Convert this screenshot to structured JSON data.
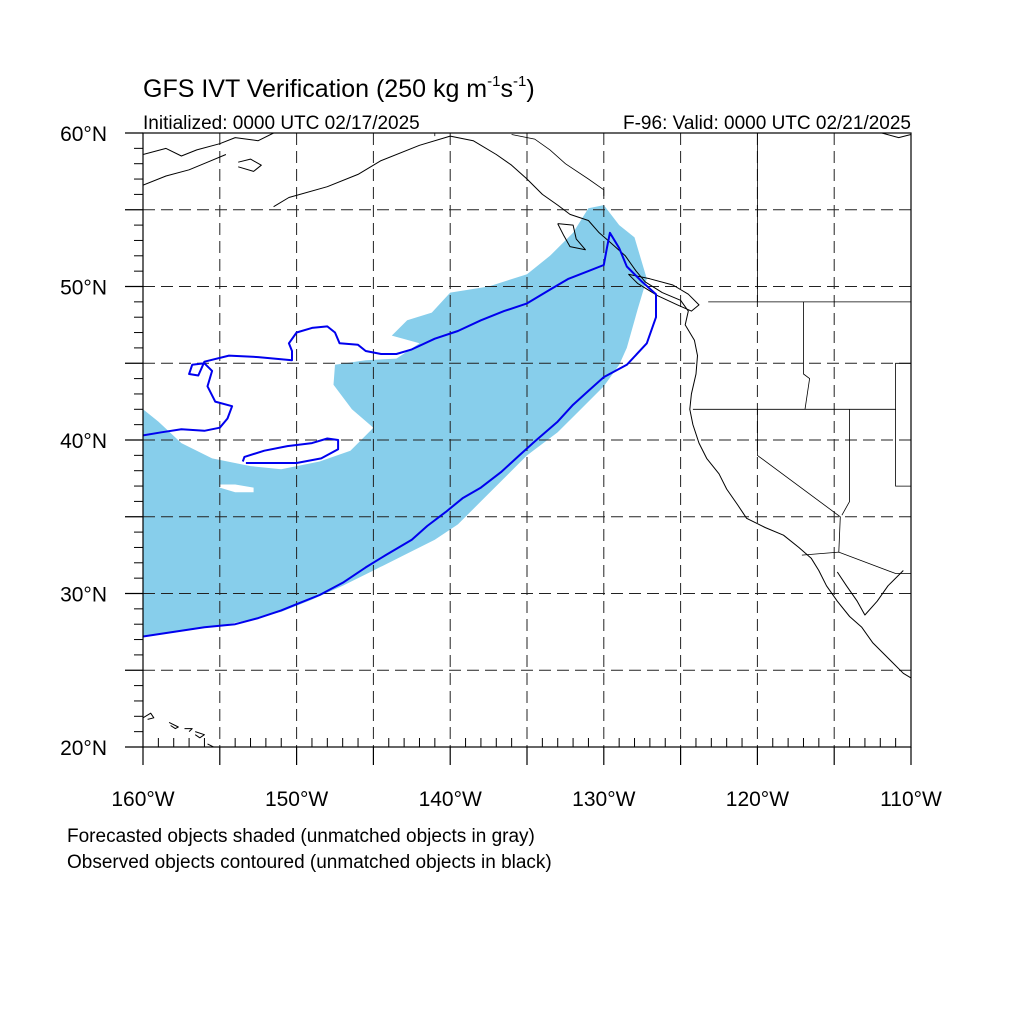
{
  "title": {
    "main": "GFS IVT Verification (250 kg m",
    "exp1": "-1",
    "mid": "s",
    "exp2": "-1",
    "end": ")"
  },
  "subtitle_left": "Initialized: 0000 UTC 02/17/2025",
  "subtitle_right": "F-96: Valid: 0000 UTC 02/21/2025",
  "map": {
    "lon_range": [
      -160,
      -110
    ],
    "lat_range": [
      20,
      60
    ],
    "lon_labels": [
      {
        "lon": -160,
        "text": "160°W"
      },
      {
        "lon": -150,
        "text": "150°W"
      },
      {
        "lon": -140,
        "text": "140°W"
      },
      {
        "lon": -130,
        "text": "130°W"
      },
      {
        "lon": -120,
        "text": "120°W"
      },
      {
        "lon": -110,
        "text": "110°W"
      }
    ],
    "lat_labels": [
      {
        "lat": 60,
        "text": "60°N"
      },
      {
        "lat": 50,
        "text": "50°N"
      },
      {
        "lat": 40,
        "text": "40°N"
      },
      {
        "lat": 30,
        "text": "30°N"
      },
      {
        "lat": 20,
        "text": "20°N"
      }
    ],
    "grid_lons": [
      -155,
      -150,
      -145,
      -140,
      -135,
      -130,
      -125,
      -120,
      -115
    ],
    "grid_lats": [
      25,
      30,
      35,
      40,
      45,
      50,
      55
    ],
    "forecast_color": "#87ceeb",
    "observed_color": "#0000ee",
    "coast_color": "#000000",
    "forecast_object": [
      [
        -160,
        42
      ],
      [
        -159,
        41.2
      ],
      [
        -157.5,
        39.8
      ],
      [
        -155.5,
        38.8
      ],
      [
        -153,
        38.3
      ],
      [
        -151,
        38.1
      ],
      [
        -148.5,
        38.6
      ],
      [
        -146.5,
        39.3
      ],
      [
        -145,
        40.8
      ],
      [
        -146.4,
        42
      ],
      [
        -147.6,
        43.6
      ],
      [
        -147.5,
        44.9
      ],
      [
        -145.5,
        45.2
      ],
      [
        -143.5,
        45.3
      ],
      [
        -142,
        46.3
      ],
      [
        -143.8,
        46.8
      ],
      [
        -142.8,
        47.8
      ],
      [
        -141.2,
        48.3
      ],
      [
        -140,
        49.6
      ],
      [
        -137.5,
        50
      ],
      [
        -135,
        50.8
      ],
      [
        -133.5,
        52
      ],
      [
        -132,
        53.5
      ],
      [
        -131,
        55.1
      ],
      [
        -130,
        55.3
      ],
      [
        -129,
        54
      ],
      [
        -128,
        53.2
      ],
      [
        -127.2,
        50.5
      ],
      [
        -127.8,
        48.5
      ],
      [
        -128.5,
        46
      ],
      [
        -129,
        44.9
      ],
      [
        -130,
        43.5
      ],
      [
        -131.5,
        42
      ],
      [
        -133,
        40.5
      ],
      [
        -135,
        39
      ],
      [
        -136.5,
        37.5
      ],
      [
        -138,
        36
      ],
      [
        -139.5,
        34.5
      ],
      [
        -141,
        33.5
      ],
      [
        -143,
        32.5
      ],
      [
        -145,
        31.5
      ],
      [
        -147,
        30.5
      ],
      [
        -149,
        29.6
      ],
      [
        -151,
        28.8
      ],
      [
        -153,
        28.3
      ],
      [
        -155,
        27.9
      ],
      [
        -157,
        27.6
      ],
      [
        -158.5,
        27.4
      ],
      [
        -160,
        27.2
      ]
    ],
    "forecast_hole": [
      [
        -155,
        36.9
      ],
      [
        -154,
        36.6
      ],
      [
        -152.8,
        36.6
      ],
      [
        -152.8,
        36.9
      ],
      [
        -154,
        37.1
      ],
      [
        -155,
        37.1
      ]
    ],
    "observed_objects": [
      [
        [
          -160,
          40.3
        ],
        [
          -158.8,
          40.5
        ],
        [
          -157.5,
          40.7
        ],
        [
          -156,
          40.6
        ],
        [
          -155,
          40.8
        ],
        [
          -154.5,
          41.4
        ],
        [
          -154.2,
          42.2
        ],
        [
          -155.3,
          42.5
        ],
        [
          -155.8,
          43.5
        ],
        [
          -155.5,
          44.5
        ],
        [
          -156,
          45
        ],
        [
          -156.8,
          44.9
        ],
        [
          -157,
          44.3
        ],
        [
          -156.4,
          44.2
        ],
        [
          -156,
          45.1
        ],
        [
          -154.4,
          45.5
        ],
        [
          -152.5,
          45.4
        ],
        [
          -150.3,
          45.2
        ],
        [
          -150.3,
          45.8
        ],
        [
          -150.5,
          46.3
        ],
        [
          -150,
          47
        ],
        [
          -149,
          47.3
        ],
        [
          -148,
          47.4
        ],
        [
          -147.5,
          47
        ],
        [
          -147.2,
          46.3
        ],
        [
          -146,
          46.2
        ],
        [
          -145.5,
          45.8
        ],
        [
          -144.5,
          45.6
        ],
        [
          -143.5,
          45.6
        ],
        [
          -142.5,
          45.9
        ],
        [
          -141,
          46.6
        ],
        [
          -139.5,
          47.1
        ],
        [
          -138,
          47.8
        ],
        [
          -136.5,
          48.4
        ],
        [
          -135,
          48.9
        ],
        [
          -133.5,
          49.8
        ],
        [
          -132.3,
          50.5
        ],
        [
          -131,
          51
        ],
        [
          -130,
          51.4
        ],
        [
          -129.8,
          52.5
        ],
        [
          -129.6,
          53.5
        ],
        [
          -129,
          52.5
        ],
        [
          -128.5,
          51.3
        ],
        [
          -127.5,
          50.3
        ],
        [
          -126.6,
          49.5
        ],
        [
          -126.6,
          48
        ],
        [
          -127.2,
          46.3
        ],
        [
          -128.5,
          44.9
        ],
        [
          -130,
          44.1
        ],
        [
          -131,
          43.2
        ],
        [
          -132,
          42.3
        ],
        [
          -133,
          41.2
        ],
        [
          -134.5,
          39.9
        ],
        [
          -135.5,
          39
        ],
        [
          -136.7,
          37.9
        ],
        [
          -138,
          36.9
        ],
        [
          -139.2,
          36.2
        ],
        [
          -140.3,
          35.3
        ],
        [
          -141.5,
          34.4
        ],
        [
          -142.5,
          33.5
        ],
        [
          -144.2,
          32.5
        ],
        [
          -145.5,
          31.7
        ],
        [
          -147,
          30.7
        ],
        [
          -148.5,
          29.9
        ],
        [
          -150,
          29.3
        ],
        [
          -151,
          28.9
        ],
        [
          -152.5,
          28.4
        ],
        [
          -154,
          28
        ],
        [
          -156,
          27.8
        ],
        [
          -158,
          27.5
        ],
        [
          -160,
          27.2
        ]
      ],
      [
        [
          -153.3,
          38.5
        ],
        [
          -152,
          38.5
        ],
        [
          -150,
          38.5
        ],
        [
          -148.4,
          38.8
        ],
        [
          -147.3,
          39.4
        ],
        [
          -147.3,
          40
        ],
        [
          -148,
          40.1
        ],
        [
          -149,
          39.8
        ],
        [
          -150.6,
          39.6
        ],
        [
          -152.1,
          39.3
        ],
        [
          -153.4,
          38.9
        ],
        [
          -153.5,
          38.6
        ]
      ]
    ],
    "coastlines": [
      [
        [
          -151.5,
          55.2
        ],
        [
          -150.5,
          55.8
        ],
        [
          -148,
          56.5
        ],
        [
          -146,
          57.3
        ],
        [
          -144.5,
          58.2
        ],
        [
          -142,
          59.2
        ],
        [
          -140,
          59.8
        ],
        [
          -138.5,
          59.5
        ],
        [
          -137,
          58.6
        ],
        [
          -136,
          57.9
        ],
        [
          -135,
          57
        ],
        [
          -134,
          56
        ],
        [
          -133,
          55.3
        ],
        [
          -132.2,
          54.7
        ],
        [
          -131,
          54.3
        ],
        [
          -130.3,
          53.5
        ],
        [
          -129.5,
          52.8
        ],
        [
          -128.6,
          52
        ],
        [
          -127.9,
          51
        ],
        [
          -127.3,
          50.3
        ],
        [
          -126.2,
          49.6
        ],
        [
          -125,
          49.1
        ],
        [
          -124.5,
          48.4
        ],
        [
          -124.7,
          47.5
        ],
        [
          -124.1,
          46.5
        ],
        [
          -123.9,
          45.5
        ],
        [
          -124,
          44.3
        ],
        [
          -124.3,
          43
        ],
        [
          -124.4,
          42
        ],
        [
          -124.2,
          41
        ],
        [
          -123.8,
          39.8
        ],
        [
          -123.3,
          38.8
        ],
        [
          -122.5,
          37.8
        ],
        [
          -122,
          36.8
        ],
        [
          -121.3,
          35.8
        ],
        [
          -120.7,
          34.9
        ],
        [
          -119.5,
          34.3
        ],
        [
          -118.3,
          33.8
        ],
        [
          -117.3,
          33
        ],
        [
          -116.5,
          32.3
        ],
        [
          -116,
          31.5
        ],
        [
          -115.5,
          30.5
        ],
        [
          -114.8,
          29.5
        ],
        [
          -114,
          28.5
        ],
        [
          -113.2,
          27.8
        ],
        [
          -112.5,
          26.8
        ],
        [
          -111.5,
          25.8
        ],
        [
          -110.5,
          24.8
        ],
        [
          -110,
          24.5
        ]
      ],
      [
        [
          -110.5,
          31.5
        ],
        [
          -111.5,
          30.5
        ],
        [
          -112.2,
          29.5
        ],
        [
          -113,
          28.6
        ],
        [
          -113.5,
          29.5
        ],
        [
          -114.2,
          30.5
        ],
        [
          -114.8,
          31.4
        ]
      ],
      [
        [
          -160,
          58.6
        ],
        [
          -158.5,
          59
        ],
        [
          -157.5,
          58.5
        ],
        [
          -156.5,
          58.9
        ],
        [
          -155,
          59.3
        ],
        [
          -154,
          59.7
        ],
        [
          -152.5,
          59.5
        ],
        [
          -151.5,
          60
        ]
      ],
      [
        [
          -160,
          56.6
        ],
        [
          -158.5,
          57.2
        ],
        [
          -157,
          57.6
        ],
        [
          -155.8,
          58.1
        ],
        [
          -154.6,
          58.6
        ]
      ],
      [
        [
          -153.8,
          57.8
        ],
        [
          -152.8,
          57.5
        ],
        [
          -152.3,
          57.9
        ],
        [
          -153,
          58.3
        ],
        [
          -153.8,
          58.1
        ]
      ],
      [
        [
          -133,
          54.1
        ],
        [
          -132,
          54
        ],
        [
          -131.8,
          53.1
        ],
        [
          -131.2,
          52.4
        ],
        [
          -132.2,
          52.6
        ],
        [
          -132.6,
          53.3
        ],
        [
          -133,
          54.1
        ]
      ],
      [
        [
          -128.4,
          50.8
        ],
        [
          -127,
          50.5
        ],
        [
          -125.5,
          50.1
        ],
        [
          -124.5,
          49.5
        ],
        [
          -123.8,
          48.8
        ],
        [
          -124.3,
          48.4
        ],
        [
          -125.2,
          48.8
        ],
        [
          -126.5,
          49.4
        ],
        [
          -127.8,
          50.2
        ],
        [
          -128.4,
          50.8
        ]
      ],
      [
        [
          -160,
          21.9
        ],
        [
          -159.5,
          22.2
        ],
        [
          -159.3,
          21.9
        ],
        [
          -159.7,
          21.8
        ]
      ],
      [
        [
          -158.3,
          21.6
        ],
        [
          -157.7,
          21.3
        ],
        [
          -157.9,
          21.2
        ],
        [
          -158.2,
          21.4
        ]
      ],
      [
        [
          -157.3,
          21.2
        ],
        [
          -156.8,
          21.2
        ],
        [
          -157.0,
          21.0
        ]
      ],
      [
        [
          -156.6,
          21
        ],
        [
          -156,
          20.8
        ],
        [
          -156.3,
          20.6
        ],
        [
          -156.6,
          20.8
        ]
      ],
      [
        [
          -155.8,
          20.2
        ],
        [
          -155,
          19.8
        ],
        [
          -155.2,
          19.9
        ]
      ],
      [
        [
          -111.9,
          60
        ],
        [
          -110.8,
          59.7
        ],
        [
          -110,
          59.9
        ]
      ]
    ],
    "borders": [
      [
        [
          -141,
          60
        ],
        [
          -141,
          59.8
        ]
      ],
      [
        [
          -130,
          55.9
        ],
        [
          -130,
          56.3
        ],
        [
          -131,
          57
        ],
        [
          -132.5,
          58
        ],
        [
          -133.5,
          58.9
        ],
        [
          -134.5,
          59.6
        ],
        [
          -136,
          59.9
        ]
      ],
      [
        [
          -123.2,
          49
        ],
        [
          -110,
          49
        ]
      ],
      [
        [
          -120,
          60
        ],
        [
          -120,
          49
        ]
      ],
      [
        [
          -117,
          49
        ],
        [
          -117,
          44.3
        ],
        [
          -116.6,
          44
        ],
        [
          -116.9,
          42
        ]
      ],
      [
        [
          -124.2,
          42
        ],
        [
          -111,
          42
        ],
        [
          -111,
          45
        ],
        [
          -110,
          45
        ]
      ],
      [
        [
          -120,
          42
        ],
        [
          -120,
          39
        ],
        [
          -114.6,
          35
        ],
        [
          -114.7,
          32.7
        ]
      ],
      [
        [
          -117.1,
          32.5
        ],
        [
          -114.7,
          32.7
        ],
        [
          -111,
          31.3
        ],
        [
          -110,
          31.3
        ]
      ],
      [
        [
          -114,
          42
        ],
        [
          -114,
          36
        ],
        [
          -114.5,
          35.1
        ]
      ],
      [
        [
          -111,
          42
        ],
        [
          -111,
          37
        ],
        [
          -110,
          37
        ]
      ]
    ]
  }
}
